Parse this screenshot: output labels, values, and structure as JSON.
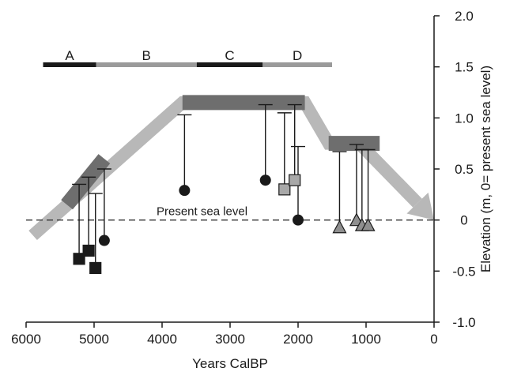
{
  "chart_data": {
    "type": "scatter",
    "title": "",
    "xlabel": "Years CalBP",
    "ylabel": "Elevation (m, 0= present sea level)",
    "xlim": [
      6000,
      0
    ],
    "ylim": [
      -1.0,
      2.0
    ],
    "x_ticks": [
      6000,
      5000,
      4000,
      3000,
      2000,
      1000,
      0
    ],
    "x_tick_labels": [
      "6000",
      "5000",
      "4000",
      "3000",
      "2000",
      "1000",
      "0"
    ],
    "y_ticks": [
      2.0,
      1.5,
      1.0,
      0.5,
      0,
      -0.5,
      -1.0
    ],
    "y_tick_labels": [
      "2.0",
      "1.5",
      "1.0",
      "0.5",
      "0",
      "-0.5",
      "-1.0"
    ],
    "y_axis_side": "right",
    "reference_line": {
      "y": 0,
      "label": "Present sea level"
    },
    "periods": [
      {
        "label": "A",
        "start": 5750,
        "end": 4970,
        "color": "#1a1a1a"
      },
      {
        "label": "B",
        "start": 4970,
        "end": 3490,
        "color": "#9a9a9a"
      },
      {
        "label": "C",
        "start": 3490,
        "end": 2520,
        "color": "#1a1a1a"
      },
      {
        "label": "D",
        "start": 2520,
        "end": 1500,
        "color": "#9a9a9a"
      }
    ],
    "trend_band": {
      "color": "#b8b8b8",
      "points": [
        [
          5900,
          -0.15
        ],
        [
          3700,
          1.15
        ],
        [
          1900,
          1.15
        ],
        [
          1550,
          0.75
        ],
        [
          1100,
          0.75
        ],
        [
          0,
          0
        ]
      ]
    },
    "dark_segments": [
      {
        "color": "#6e6e6e",
        "points": [
          [
            5400,
            0.15
          ],
          [
            4850,
            0.6
          ]
        ]
      },
      {
        "color": "#6e6e6e",
        "points": [
          [
            3700,
            1.15
          ],
          [
            1900,
            1.15
          ]
        ]
      },
      {
        "color": "#6e6e6e",
        "points": [
          [
            1550,
            0.75
          ],
          [
            800,
            0.75
          ]
        ]
      }
    ],
    "series": [
      {
        "marker": "square",
        "color": "#1a1a1a",
        "points": [
          {
            "x": 5220,
            "y": -0.38,
            "upper": 0.35
          },
          {
            "x": 5080,
            "y": -0.3,
            "upper": 0.42
          },
          {
            "x": 4980,
            "y": -0.47,
            "upper": 0.26
          }
        ]
      },
      {
        "marker": "circle",
        "color": "#1a1a1a",
        "points": [
          {
            "x": 4850,
            "y": -0.2,
            "upper": 0.5
          },
          {
            "x": 3670,
            "y": 0.29,
            "upper": 1.03
          },
          {
            "x": 2480,
            "y": 0.39,
            "upper": 1.13
          },
          {
            "x": 2000,
            "y": 0.0,
            "upper": 0.72
          }
        ]
      },
      {
        "marker": "square",
        "color": "#a8a8a8",
        "points": [
          {
            "x": 2200,
            "y": 0.3,
            "upper": 1.05
          },
          {
            "x": 2050,
            "y": 0.39,
            "upper": 1.13
          }
        ]
      },
      {
        "marker": "triangle",
        "color": "#8f8f8f",
        "points": [
          {
            "x": 1390,
            "y": -0.07,
            "upper": 0.67
          },
          {
            "x": 1140,
            "y": 0.0,
            "upper": 0.74
          },
          {
            "x": 1060,
            "y": -0.05,
            "upper": 0.69
          },
          {
            "x": 970,
            "y": -0.05,
            "upper": 0.69
          }
        ]
      }
    ],
    "grid": false,
    "legend": "none"
  }
}
